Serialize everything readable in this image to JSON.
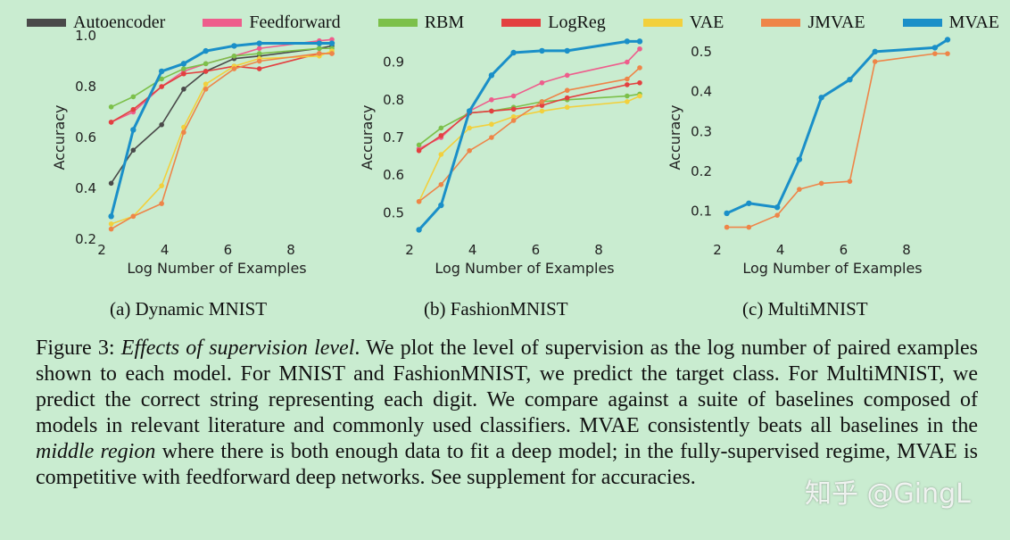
{
  "colors": {
    "Autoencoder": "#4a4a4a",
    "Feedforward": "#ee5d8c",
    "RBM": "#7cc04a",
    "LogReg": "#e34040",
    "VAE": "#f2d03c",
    "JMVAE": "#ee8548",
    "MVAE": "#1a8fc8"
  },
  "legend": [
    "Autoencoder",
    "Feedforward",
    "RBM",
    "LogReg",
    "VAE",
    "JMVAE",
    "MVAE"
  ],
  "chart_data": [
    {
      "type": "line",
      "subcaption": "(a) Dynamic MNIST",
      "xlabel": "Log Number of Examples",
      "ylabel": "Accuracy",
      "xlim": [
        2,
        9.3
      ],
      "ylim": [
        0.2,
        1.0
      ],
      "xticks": [
        "2",
        "4",
        "6",
        "8"
      ],
      "yticks": [
        "0.2",
        "0.4",
        "0.6",
        "0.8",
        "1.0"
      ],
      "x": [
        2.3,
        3.0,
        3.9,
        4.6,
        5.3,
        6.2,
        7.0,
        8.9,
        9.3
      ],
      "series": [
        {
          "name": "Autoencoder",
          "values": [
            0.42,
            0.55,
            0.65,
            0.79,
            0.86,
            0.91,
            0.92,
            0.95,
            0.96
          ]
        },
        {
          "name": "Feedforward",
          "values": [
            0.66,
            0.7,
            0.8,
            0.86,
            0.89,
            0.92,
            0.95,
            0.98,
            0.985
          ]
        },
        {
          "name": "RBM",
          "values": [
            0.72,
            0.76,
            0.83,
            0.87,
            0.89,
            0.92,
            0.93,
            0.95,
            0.95
          ]
        },
        {
          "name": "LogReg",
          "values": [
            0.66,
            0.71,
            0.8,
            0.85,
            0.86,
            0.88,
            0.87,
            0.93,
            0.93
          ]
        },
        {
          "name": "VAE",
          "values": [
            0.26,
            0.29,
            0.41,
            0.64,
            0.81,
            0.88,
            0.91,
            0.92,
            0.94
          ]
        },
        {
          "name": "JMVAE",
          "values": [
            0.24,
            0.29,
            0.34,
            0.62,
            0.79,
            0.87,
            0.9,
            0.93,
            0.93
          ]
        },
        {
          "name": "MVAE",
          "values": [
            0.29,
            0.63,
            0.86,
            0.89,
            0.94,
            0.96,
            0.97,
            0.97,
            0.97
          ]
        }
      ]
    },
    {
      "type": "line",
      "subcaption": "(b) FashionMNIST",
      "xlabel": "Log Number of Examples",
      "ylabel": "Accuracy",
      "xlim": [
        2,
        9.3
      ],
      "ylim": [
        0.43,
        0.97
      ],
      "xticks": [
        "2",
        "4",
        "6",
        "8"
      ],
      "yticks": [
        "0.5",
        "0.6",
        "0.7",
        "0.8",
        "0.9"
      ],
      "x": [
        2.3,
        3.0,
        3.9,
        4.6,
        5.3,
        6.2,
        7.0,
        8.9,
        9.3
      ],
      "series": [
        {
          "name": "Feedforward",
          "values": [
            0.67,
            0.7,
            0.77,
            0.8,
            0.81,
            0.845,
            0.865,
            0.9,
            0.935
          ]
        },
        {
          "name": "RBM",
          "values": [
            0.68,
            0.725,
            0.765,
            0.77,
            0.78,
            0.795,
            0.8,
            0.81,
            0.815
          ]
        },
        {
          "name": "LogReg",
          "values": [
            0.665,
            0.705,
            0.765,
            0.77,
            0.775,
            0.785,
            0.805,
            0.84,
            0.845
          ]
        },
        {
          "name": "VAE",
          "values": [
            0.53,
            0.655,
            0.725,
            0.735,
            0.755,
            0.77,
            0.78,
            0.795,
            0.81
          ]
        },
        {
          "name": "JMVAE",
          "values": [
            0.53,
            0.575,
            0.665,
            0.7,
            0.745,
            0.795,
            0.825,
            0.855,
            0.885
          ]
        },
        {
          "name": "MVAE",
          "values": [
            0.455,
            0.52,
            0.77,
            0.865,
            0.925,
            0.93,
            0.93,
            0.955,
            0.955
          ]
        }
      ]
    },
    {
      "type": "line",
      "subcaption": "(c) MultiMNIST",
      "xlabel": "Log Number of Examples",
      "ylabel": "Accuracy",
      "xlim": [
        2,
        9.3
      ],
      "ylim": [
        0.03,
        0.54
      ],
      "xticks": [
        "2",
        "4",
        "6",
        "8"
      ],
      "yticks": [
        "0.1",
        "0.2",
        "0.3",
        "0.4",
        "0.5"
      ],
      "x": [
        2.3,
        3.0,
        3.9,
        4.6,
        5.3,
        6.2,
        7.0,
        8.9,
        9.3
      ],
      "series": [
        {
          "name": "JMVAE",
          "values": [
            0.06,
            0.06,
            0.09,
            0.155,
            0.17,
            0.175,
            0.475,
            0.495,
            0.495
          ]
        },
        {
          "name": "MVAE",
          "values": [
            0.095,
            0.12,
            0.11,
            0.23,
            0.385,
            0.43,
            0.5,
            0.51,
            0.53
          ]
        }
      ]
    }
  ],
  "caption": {
    "label": "Figure 3: ",
    "title": "Effects of supervision level",
    "part1": ". We plot the level of supervision as the log number of paired examples shown to each model. For MNIST and FashionMNIST, we predict the target class. For MultiMNIST, we predict the correct string representing each digit. We compare against a suite of baselines composed of models in relevant literature and commonly used classifiers. MVAE consistently beats all baselines in the ",
    "emph": "middle region",
    "part2": " where there is both enough data to fit a deep model; in the fully-supervised regime, MVAE is competitive with feedforward deep networks. See supplement for accuracies."
  },
  "watermark": "知乎 @GingL"
}
